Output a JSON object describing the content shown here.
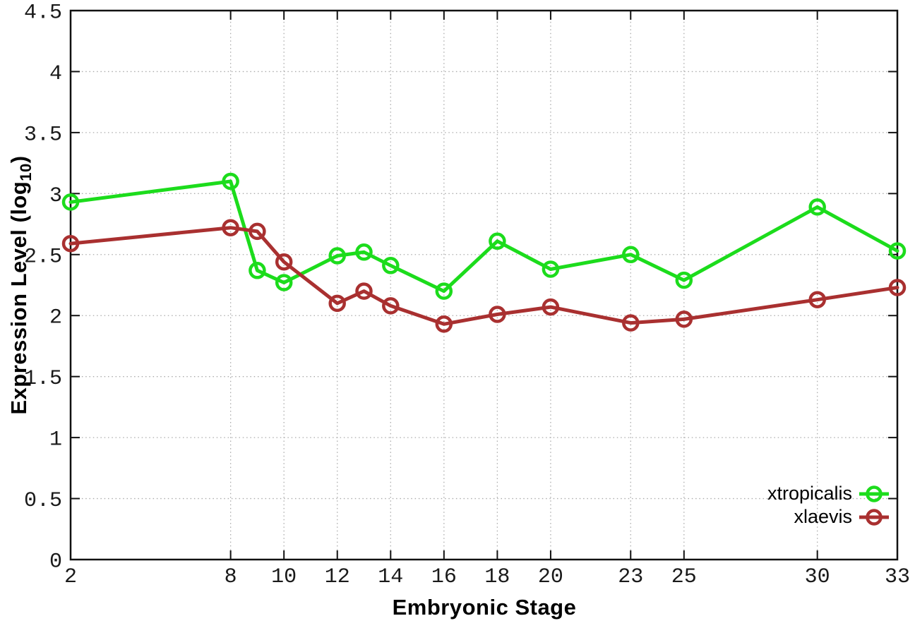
{
  "chart_data": {
    "type": "line",
    "title": "",
    "xlabel": "Embryonic Stage",
    "ylabel_prefix": "Expression Level (log",
    "ylabel_sub": "10",
    "ylabel_suffix": ")",
    "x": [
      2,
      8,
      9,
      10,
      12,
      13,
      14,
      16,
      18,
      20,
      23,
      25,
      30,
      33
    ],
    "xticks": [
      2,
      8,
      10,
      12,
      14,
      16,
      18,
      20,
      23,
      25,
      30,
      33
    ],
    "yticks": [
      0,
      0.5,
      1,
      1.5,
      2,
      2.5,
      3,
      3.5,
      4,
      4.5
    ],
    "xlim": [
      2,
      33
    ],
    "ylim": [
      0,
      4.5
    ],
    "grid": true,
    "legend_position": "inside-bottom-right",
    "series": [
      {
        "name": "xtropicalis",
        "color": "#1cdc1c",
        "marker": "open-circle",
        "values": [
          2.93,
          3.1,
          2.37,
          2.27,
          2.49,
          2.52,
          2.41,
          2.2,
          2.61,
          2.38,
          2.5,
          2.29,
          2.89,
          2.53
        ]
      },
      {
        "name": "xlaevis",
        "color": "#a93030",
        "marker": "open-circle",
        "values": [
          2.59,
          2.72,
          2.69,
          2.44,
          2.1,
          2.2,
          2.08,
          1.93,
          2.01,
          2.07,
          1.94,
          1.97,
          2.13,
          2.23
        ]
      }
    ]
  },
  "styles": {
    "background": "#ffffff",
    "axis_color": "#111111",
    "grid_color": "#ababab",
    "tick_label_color": "#1a1a1a"
  }
}
